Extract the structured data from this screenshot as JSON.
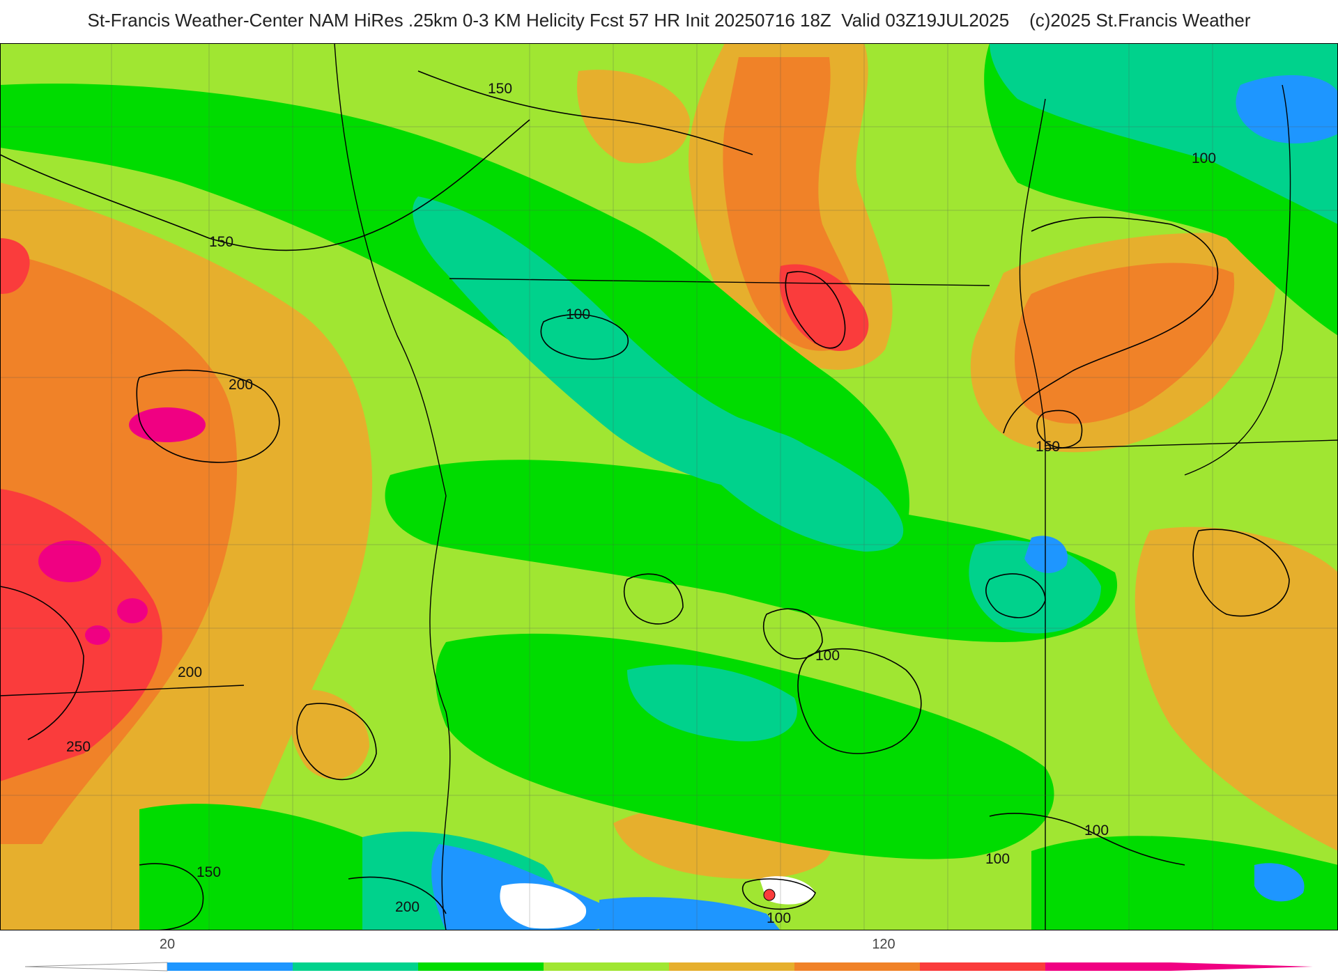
{
  "header": {
    "title": "St-Francis Weather-Center NAM HiRes .25km 0-3 KM Helicity Fcst 57 HR Init 20250716 18Z  Valid 03Z19JUL2025    (c)2025 St.Francis Weather"
  },
  "contour_labels": [
    "150",
    "150",
    "100",
    "100",
    "150",
    "200",
    "200",
    "250",
    "100",
    "100",
    "100",
    "150",
    "200",
    "100"
  ],
  "colorbar": {
    "tick_labels": [
      "20",
      "120"
    ],
    "colors": [
      "#1e96ff",
      "#00d28c",
      "#00dc00",
      "#a0e632",
      "#e6af2d",
      "#f08228",
      "#fa3c3c",
      "#f00082"
    ]
  },
  "colors": {
    "background_outer": "#ffffff",
    "contour_line": "#000000"
  }
}
